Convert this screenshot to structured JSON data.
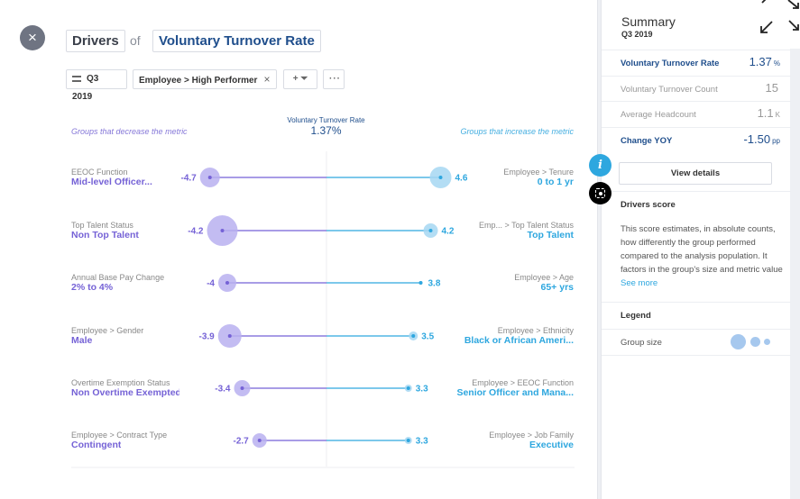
{
  "header": {
    "drivers_label": "Drivers",
    "of_label": "of",
    "metric_title": "Voluntary Turnover Rate"
  },
  "filters": {
    "period": "Q3 2019",
    "employee_filter": "Employee > High Performer",
    "add_filter_icon": "plus-filter-icon",
    "more_icon": "more-dots-icon"
  },
  "chart_header": {
    "left_group_label": "Groups that decrease the metric",
    "right_group_label": "Groups that increase the metric",
    "metric_label": "Voluntary Turnover Rate",
    "metric_value": "1.37%"
  },
  "chart_data": {
    "type": "scatter",
    "x_range": [
      -5.5,
      5.5
    ],
    "center": 0,
    "decreasing": [
      {
        "category": "EEOC Function",
        "group": "Mid-level Officer...",
        "value": -4.7,
        "size": 11
      },
      {
        "category": "Top Talent Status",
        "group": "Non Top Talent",
        "value": -4.2,
        "size": 17
      },
      {
        "category": "Annual Base Pay Change",
        "group": "2% to 4%",
        "value": -4,
        "size": 10
      },
      {
        "category": "Employee > Gender",
        "group": "Male",
        "value": -3.9,
        "size": 13
      },
      {
        "category": "Overtime Exemption Status",
        "group": "Non Overtime Exempted",
        "value": -3.4,
        "size": 9
      },
      {
        "category": "Employee > Contract Type",
        "group": "Contingent",
        "value": -2.7,
        "size": 8
      }
    ],
    "increasing": [
      {
        "category": "Employee > Tenure",
        "group": "0 to 1 yr",
        "value": 4.6,
        "size": 12
      },
      {
        "category": "Emp... > Top Talent Status",
        "group": "Top Talent",
        "value": 4.2,
        "size": 8
      },
      {
        "category": "Employee > Age",
        "group": "65+ yrs",
        "value": 3.8,
        "size": 2
      },
      {
        "category": "Employee > Ethnicity",
        "group": "Black or African Ameri...",
        "value": 3.5,
        "size": 5
      },
      {
        "category": "Employee > EEOC Function",
        "group": "Senior Officer and Mana...",
        "value": 3.3,
        "size": 4
      },
      {
        "category": "Employee > Job Family",
        "group": "Executive",
        "value": 3.3,
        "size": 4
      }
    ],
    "colors": {
      "decrease": "#7562d6",
      "decrease_fill": "#b9b0f0",
      "increase": "#2ea7df",
      "increase_fill": "#a6d7f2"
    }
  },
  "summary": {
    "title": "Summary",
    "period": "Q3 2019",
    "rows": [
      {
        "label": "Voluntary Turnover Rate",
        "value": "1.37",
        "unit": "%",
        "highlight": true
      },
      {
        "label": "Voluntary Turnover Count",
        "value": "15",
        "unit": "",
        "highlight": false
      },
      {
        "label": "Average Headcount",
        "value": "1.1",
        "unit": "K",
        "highlight": false
      },
      {
        "label": "Change YOY",
        "value": "-1.50",
        "unit": "pp",
        "highlight": true
      }
    ],
    "view_details": "View details",
    "drivers_score_title": "Drivers score",
    "drivers_score_desc": "This score estimates, in absolute counts, how differently the group performed compared to the analysis population. It factors in the group's size and metric value",
    "see_more": "See more",
    "legend_title": "Legend",
    "group_size_label": "Group size"
  },
  "icons": {
    "close": "×",
    "info": "i"
  }
}
